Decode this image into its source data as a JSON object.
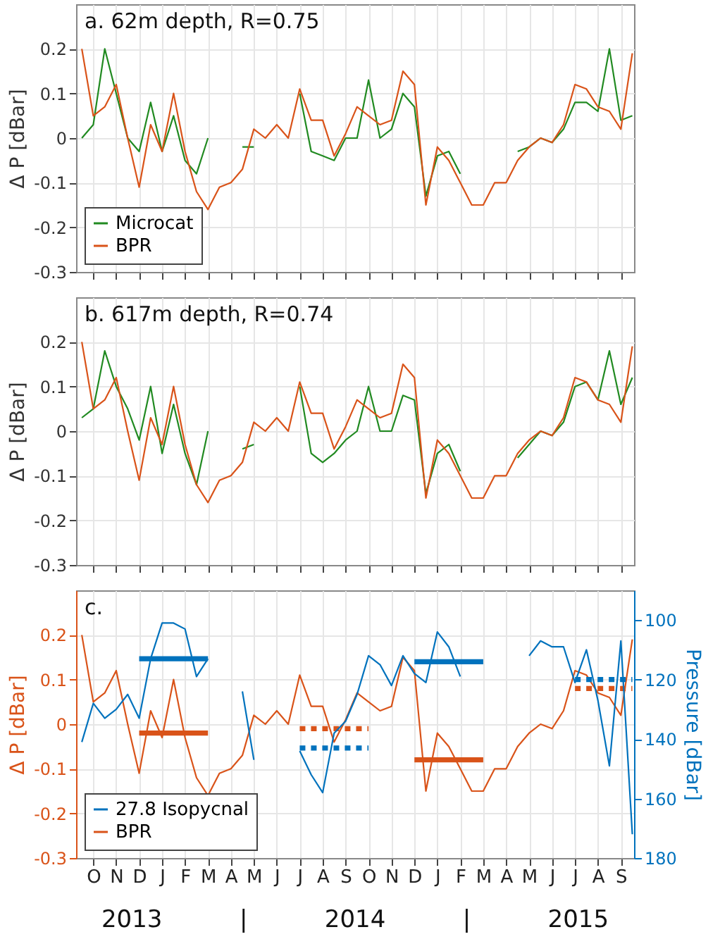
{
  "chart_data": [
    {
      "type": "line",
      "title": "a. 62m depth, R=0.75",
      "ylabel": "Δ P [dBar]",
      "categories": [
        null,
        null,
        null,
        null,
        null,
        null,
        null,
        null,
        null,
        null,
        null,
        null,
        null,
        null,
        null,
        null,
        null,
        null,
        null,
        null,
        null,
        null,
        null,
        null,
        null,
        null,
        null,
        null,
        null,
        null,
        null,
        null,
        null,
        null,
        null,
        null,
        null,
        null,
        null,
        null,
        null,
        null,
        null,
        null,
        null,
        null,
        null,
        null,
        null
      ],
      "series": [
        {
          "name": "Microcat",
          "color": "#218a21",
          "values": [
            0.0,
            0.03,
            0.2,
            0.1,
            0.0,
            -0.03,
            0.08,
            -0.03,
            0.05,
            -0.05,
            -0.08,
            0.0,
            null,
            null,
            -0.02,
            -0.02,
            null,
            null,
            null,
            0.1,
            -0.03,
            -0.04,
            -0.05,
            0.0,
            0.0,
            0.13,
            0.0,
            0.02,
            0.1,
            0.07,
            -0.13,
            -0.04,
            -0.03,
            -0.08,
            null,
            null,
            null,
            null,
            -0.03,
            -0.02,
            0.0,
            -0.01,
            0.02,
            0.08,
            0.08,
            0.06,
            0.2,
            0.04,
            0.05
          ]
        },
        {
          "name": "BPR",
          "color": "#d95319",
          "values": [
            0.2,
            0.05,
            0.07,
            0.12,
            0.0,
            -0.11,
            0.03,
            -0.03,
            0.1,
            -0.03,
            -0.12,
            -0.16,
            -0.11,
            -0.1,
            -0.07,
            0.02,
            0.0,
            0.03,
            0.0,
            0.11,
            0.04,
            0.04,
            -0.04,
            0.01,
            0.07,
            0.05,
            0.03,
            0.04,
            0.15,
            0.12,
            -0.15,
            -0.02,
            -0.05,
            -0.1,
            -0.15,
            -0.15,
            -0.1,
            -0.1,
            -0.05,
            -0.02,
            0.0,
            -0.01,
            0.03,
            0.12,
            0.11,
            0.07,
            0.06,
            0.02,
            0.19
          ]
        }
      ],
      "ylim": [
        -0.3,
        0.3
      ],
      "yticks": [
        -0.3,
        -0.2,
        -0.1,
        0,
        0.1,
        0.2
      ],
      "grid": true,
      "legend": "bottom left",
      "tick_labels": "y"
    },
    {
      "type": "line",
      "title": "b. 617m depth, R=0.74",
      "ylabel": "Δ P [dBar]",
      "categories": [
        null,
        null,
        null,
        null,
        null,
        null,
        null,
        null,
        null,
        null,
        null,
        null,
        null,
        null,
        null,
        null,
        null,
        null,
        null,
        null,
        null,
        null,
        null,
        null,
        null,
        null,
        null,
        null,
        null,
        null,
        null,
        null,
        null,
        null,
        null,
        null,
        null,
        null,
        null,
        null,
        null,
        null,
        null,
        null,
        null,
        null,
        null,
        null,
        null
      ],
      "series": [
        {
          "color": "#218a21",
          "values": [
            0.03,
            0.05,
            0.18,
            0.1,
            0.05,
            -0.02,
            0.1,
            -0.05,
            0.06,
            -0.05,
            -0.12,
            0.0,
            null,
            null,
            -0.04,
            -0.03,
            null,
            null,
            null,
            0.1,
            -0.05,
            -0.07,
            -0.05,
            -0.02,
            0.0,
            0.1,
            0.0,
            0.0,
            0.08,
            0.07,
            -0.14,
            -0.05,
            -0.03,
            -0.09,
            null,
            null,
            null,
            null,
            -0.06,
            -0.03,
            0.0,
            -0.01,
            0.02,
            0.1,
            0.11,
            0.07,
            0.18,
            0.06,
            0.12
          ]
        },
        {
          "color": "#d95319",
          "values": [
            0.2,
            0.05,
            0.07,
            0.12,
            0.0,
            -0.11,
            0.03,
            -0.03,
            0.1,
            -0.03,
            -0.12,
            -0.16,
            -0.11,
            -0.1,
            -0.07,
            0.02,
            0.0,
            0.03,
            0.0,
            0.11,
            0.04,
            0.04,
            -0.04,
            0.01,
            0.07,
            0.05,
            0.03,
            0.04,
            0.15,
            0.12,
            -0.15,
            -0.02,
            -0.05,
            -0.1,
            -0.15,
            -0.15,
            -0.1,
            -0.1,
            -0.05,
            -0.02,
            0.0,
            -0.01,
            0.03,
            0.12,
            0.11,
            0.07,
            0.06,
            0.02,
            0.19
          ]
        }
      ],
      "ylim": [
        -0.3,
        0.3
      ],
      "yticks": [
        -0.3,
        -0.2,
        -0.1,
        0,
        0.1,
        0.2
      ],
      "grid": true,
      "tick_labels": "y"
    },
    {
      "type": "line",
      "title": "c.",
      "ylabel": "Δ P [dBar]",
      "y2label": "Pressure [dBar]",
      "categories": [
        null,
        "O",
        null,
        "N",
        null,
        "D",
        null,
        "J",
        null,
        "F",
        null,
        "M",
        null,
        "A",
        null,
        "M",
        null,
        "J",
        null,
        "J",
        null,
        "A",
        null,
        "S",
        null,
        "O",
        null,
        "N",
        null,
        "D",
        null,
        "J",
        null,
        "F",
        null,
        "M",
        null,
        "A",
        null,
        "M",
        null,
        "J",
        null,
        "J",
        null,
        "A",
        null,
        "S",
        null
      ],
      "series": [
        {
          "name": "27.8 Isopycnal",
          "color": "#0072bd",
          "axis": "y2",
          "values": [
            141,
            128,
            133,
            130,
            125,
            133,
            113,
            101,
            101,
            103,
            119,
            113,
            null,
            null,
            124,
            147,
            null,
            null,
            null,
            144,
            152,
            158,
            138,
            134,
            125,
            112,
            115,
            122,
            112,
            118,
            121,
            104,
            109,
            119,
            null,
            null,
            null,
            null,
            null,
            112,
            107,
            109,
            109,
            121,
            110,
            127,
            149,
            107,
            172
          ]
        },
        {
          "name": "BPR",
          "color": "#d95319",
          "values": [
            0.2,
            0.05,
            0.07,
            0.12,
            0.0,
            -0.11,
            0.03,
            -0.03,
            0.1,
            -0.03,
            -0.12,
            -0.16,
            -0.11,
            -0.1,
            -0.07,
            0.02,
            0.0,
            0.03,
            0.0,
            0.11,
            0.04,
            0.04,
            -0.04,
            0.01,
            0.07,
            0.05,
            0.03,
            0.04,
            0.15,
            0.12,
            -0.15,
            -0.02,
            -0.05,
            -0.1,
            -0.15,
            -0.15,
            -0.1,
            -0.1,
            -0.05,
            -0.02,
            0.0,
            -0.01,
            0.03,
            0.12,
            0.11,
            0.07,
            0.06,
            0.02,
            0.19
          ]
        },
        {
          "color": "#0072bd",
          "axis": "y2",
          "line_style": "solid",
          "values": [
            null,
            null,
            null,
            null,
            null,
            113,
            113,
            113,
            113,
            113,
            113,
            113,
            null,
            null,
            null,
            null,
            null,
            null,
            null,
            null,
            null,
            null,
            null,
            null,
            null,
            null,
            null,
            null,
            null,
            null,
            null,
            null,
            null,
            null,
            null,
            null,
            null,
            null,
            null,
            null,
            null,
            null,
            null,
            null,
            null,
            null,
            null,
            null,
            null
          ]
        },
        {
          "color": "#d95319",
          "line_style": "solid",
          "values": [
            null,
            null,
            null,
            null,
            null,
            -0.02,
            -0.02,
            -0.02,
            -0.02,
            -0.02,
            -0.02,
            -0.02,
            null,
            null,
            null,
            null,
            null,
            null,
            null,
            null,
            null,
            null,
            null,
            null,
            null,
            null,
            null,
            null,
            null,
            null,
            null,
            null,
            null,
            null,
            null,
            null,
            null,
            null,
            null,
            null,
            null,
            null,
            null,
            null,
            null,
            null,
            null,
            null,
            null
          ]
        },
        {
          "color": "#0072bd",
          "axis": "y2",
          "line_style": "dotted",
          "values": [
            null,
            null,
            null,
            null,
            null,
            null,
            null,
            null,
            null,
            null,
            null,
            null,
            null,
            null,
            null,
            null,
            null,
            null,
            null,
            143,
            143,
            143,
            143,
            143,
            143,
            143,
            null,
            null,
            null,
            null,
            null,
            null,
            null,
            null,
            null,
            null,
            null,
            null,
            null,
            null,
            null,
            null,
            null,
            null,
            null,
            null,
            null,
            null,
            null
          ]
        },
        {
          "color": "#d95319",
          "line_style": "dotted",
          "values": [
            null,
            null,
            null,
            null,
            null,
            null,
            null,
            null,
            null,
            null,
            null,
            null,
            null,
            null,
            null,
            null,
            null,
            null,
            null,
            -0.01,
            -0.01,
            -0.01,
            -0.01,
            -0.01,
            -0.01,
            -0.01,
            null,
            null,
            null,
            null,
            null,
            null,
            null,
            null,
            null,
            null,
            null,
            null,
            null,
            null,
            null,
            null,
            null,
            null,
            null,
            null,
            null,
            null,
            null
          ]
        },
        {
          "color": "#0072bd",
          "axis": "y2",
          "line_style": "solid",
          "values": [
            null,
            null,
            null,
            null,
            null,
            null,
            null,
            null,
            null,
            null,
            null,
            null,
            null,
            null,
            null,
            null,
            null,
            null,
            null,
            null,
            null,
            null,
            null,
            null,
            null,
            null,
            null,
            null,
            null,
            114,
            114,
            114,
            114,
            114,
            114,
            114,
            null,
            null,
            null,
            null,
            null,
            null,
            null,
            null,
            null,
            null,
            null,
            null,
            null
          ]
        },
        {
          "color": "#d95319",
          "line_style": "solid",
          "values": [
            null,
            null,
            null,
            null,
            null,
            null,
            null,
            null,
            null,
            null,
            null,
            null,
            null,
            null,
            null,
            null,
            null,
            null,
            null,
            null,
            null,
            null,
            null,
            null,
            null,
            null,
            null,
            null,
            null,
            -0.08,
            -0.08,
            -0.08,
            -0.08,
            -0.08,
            -0.08,
            -0.08,
            null,
            null,
            null,
            null,
            null,
            null,
            null,
            null,
            null,
            null,
            null,
            null,
            null
          ]
        },
        {
          "color": "#0072bd",
          "axis": "y2",
          "line_style": "dotted",
          "values": [
            null,
            null,
            null,
            null,
            null,
            null,
            null,
            null,
            null,
            null,
            null,
            null,
            null,
            null,
            null,
            null,
            null,
            null,
            null,
            null,
            null,
            null,
            null,
            null,
            null,
            null,
            null,
            null,
            null,
            null,
            null,
            null,
            null,
            null,
            null,
            null,
            null,
            null,
            null,
            null,
            null,
            null,
            null,
            120,
            120,
            120,
            120,
            120,
            120
          ]
        },
        {
          "color": "#d95319",
          "line_style": "dotted",
          "values": [
            null,
            null,
            null,
            null,
            null,
            null,
            null,
            null,
            null,
            null,
            null,
            null,
            null,
            null,
            null,
            null,
            null,
            null,
            null,
            null,
            null,
            null,
            null,
            null,
            null,
            null,
            null,
            null,
            null,
            null,
            null,
            null,
            null,
            null,
            null,
            null,
            null,
            null,
            null,
            null,
            null,
            null,
            null,
            0.08,
            0.08,
            0.08,
            0.08,
            0.08,
            0.08
          ]
        }
      ],
      "ylim": [
        -0.3,
        0.3
      ],
      "yticks": [
        -0.3,
        -0.2,
        -0.1,
        0,
        0.1,
        0.2
      ],
      "y2lim": [
        180,
        90
      ],
      "y2ticks": [
        100,
        120,
        140,
        160,
        180
      ],
      "grid": true,
      "legend": "bottom left",
      "annotations": [
        "2013",
        "|",
        "2014",
        "|",
        "2015"
      ]
    }
  ]
}
